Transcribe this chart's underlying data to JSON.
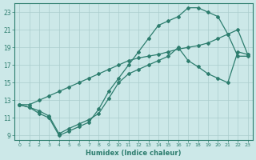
{
  "xlabel": "Humidex (Indice chaleur)",
  "bg_color": "#cce8e8",
  "grid_color": "#aacccc",
  "line_color": "#2d7d6e",
  "xlim": [
    -0.5,
    23.5
  ],
  "ylim": [
    8.5,
    24.0
  ],
  "xticks": [
    0,
    1,
    2,
    3,
    4,
    5,
    6,
    7,
    8,
    9,
    10,
    11,
    12,
    13,
    14,
    15,
    16,
    17,
    18,
    19,
    20,
    21,
    22,
    23
  ],
  "yticks": [
    9,
    11,
    13,
    15,
    17,
    19,
    21,
    23
  ],
  "line1_x": [
    0,
    1,
    2,
    3,
    4,
    5,
    6,
    7,
    8,
    9,
    10,
    11,
    12,
    13,
    14,
    15,
    16,
    17,
    18,
    19,
    20,
    21,
    22,
    23
  ],
  "line1_y": [
    12.5,
    12.2,
    11.8,
    11.2,
    9.2,
    9.8,
    10.3,
    10.8,
    11.5,
    13.2,
    15.0,
    16.0,
    16.5,
    17.0,
    17.5,
    18.0,
    19.0,
    17.5,
    16.8,
    16.0,
    15.5,
    15.0,
    18.5,
    18.2
  ],
  "line2_x": [
    0,
    1,
    2,
    3,
    4,
    5,
    6,
    7,
    8,
    9,
    10,
    11,
    12,
    13,
    14,
    15,
    16,
    17,
    18,
    19,
    20,
    21,
    22,
    23
  ],
  "line2_y": [
    12.5,
    12.2,
    11.5,
    11.0,
    9.0,
    9.5,
    10.0,
    10.5,
    12.0,
    14.0,
    15.5,
    17.0,
    18.5,
    20.0,
    21.5,
    22.0,
    22.5,
    23.5,
    23.5,
    23.0,
    22.5,
    20.5,
    18.0,
    18.0
  ],
  "line3_x": [
    0,
    1,
    2,
    3,
    4,
    5,
    6,
    7,
    8,
    9,
    10,
    11,
    12,
    13,
    14,
    15,
    16,
    17,
    18,
    19,
    20,
    21,
    22,
    23
  ],
  "line3_y": [
    12.5,
    12.5,
    13.0,
    13.5,
    14.0,
    14.5,
    15.0,
    15.5,
    16.0,
    16.5,
    17.0,
    17.5,
    17.8,
    18.0,
    18.2,
    18.5,
    18.8,
    19.0,
    19.2,
    19.5,
    20.0,
    20.5,
    21.0,
    18.2
  ]
}
